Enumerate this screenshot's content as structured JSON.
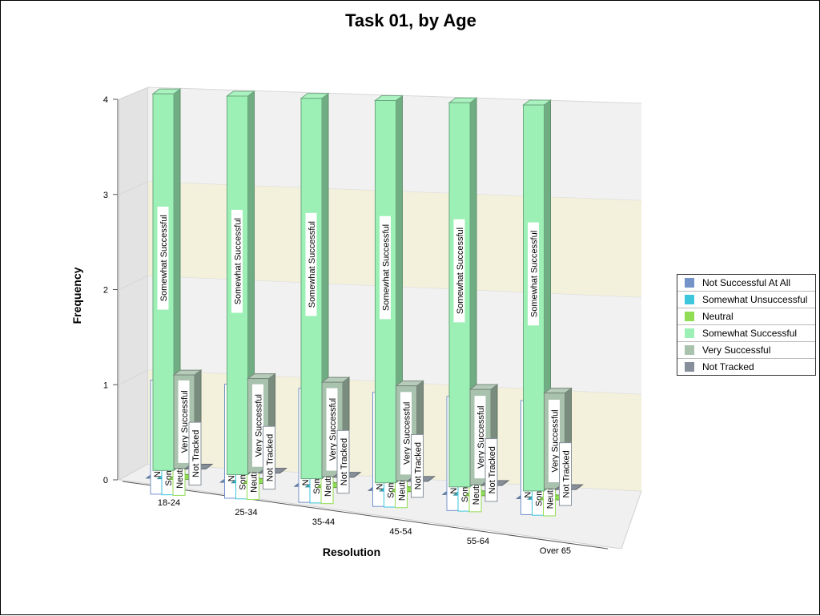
{
  "chart_data": {
    "type": "bar",
    "title": "Task 01, by Age",
    "xlabel": "Resolution",
    "ylabel": "Frequency",
    "ylim": [
      0,
      4
    ],
    "yticks": [
      "0",
      "1",
      "2",
      "3",
      "4"
    ],
    "categories": [
      "18-24",
      "25-34",
      "35-44",
      "45-54",
      "55-64",
      "Over 65"
    ],
    "series": [
      {
        "name": "Not Successful At All",
        "color": "#7393c9",
        "values": [
          0,
          0,
          0,
          0,
          0,
          0
        ]
      },
      {
        "name": "Somewhat Unsuccessful",
        "color": "#3ec6dc",
        "values": [
          0,
          0,
          0,
          0,
          0,
          0
        ]
      },
      {
        "name": "Neutral",
        "color": "#90dd55",
        "values": [
          0,
          0,
          0,
          0,
          0,
          0
        ]
      },
      {
        "name": "Somewhat Successful",
        "color": "#9cf0b6",
        "values": [
          4,
          4,
          4,
          4,
          4,
          4
        ]
      },
      {
        "name": "Very Successful",
        "color": "#a9c2ae",
        "values": [
          1,
          1,
          1,
          1,
          1,
          1
        ]
      },
      {
        "name": "Not Tracked",
        "color": "#87909a",
        "values": [
          0,
          0,
          0,
          0,
          0,
          0
        ]
      }
    ],
    "grid": true,
    "legend_position": "right"
  }
}
